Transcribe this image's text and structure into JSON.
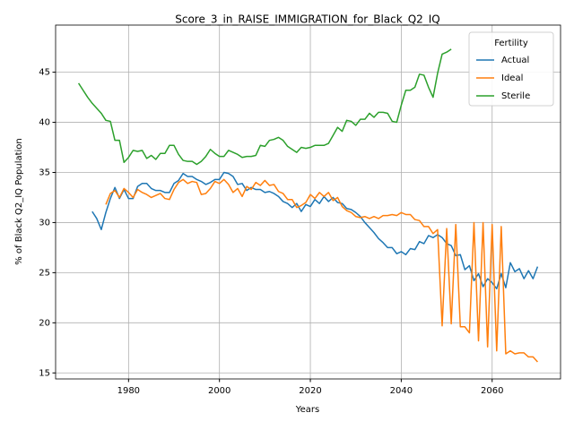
{
  "chart_data": {
    "type": "line",
    "title": "Score_3_in_RAISE_IMMIGRATION_for_Black_Q2_IQ",
    "xlabel": "Years",
    "ylabel": "% of Black Q2_IQ Population",
    "legend_title": "Fertility",
    "legend": "upper right",
    "grid": true,
    "xlim": [
      1963.95,
      2075.05
    ],
    "ylim": [
      14.4,
      49.7
    ],
    "xticks": [
      1980,
      2000,
      2020,
      2040,
      2060
    ],
    "yticks": [
      15,
      20,
      25,
      30,
      35,
      40,
      45
    ],
    "x": [
      1969,
      1970,
      1971,
      1972,
      1973,
      1974,
      1975,
      1976,
      1977,
      1978,
      1979,
      1980,
      1981,
      1982,
      1983,
      1984,
      1985,
      1986,
      1987,
      1988,
      1989,
      1990,
      1991,
      1992,
      1993,
      1994,
      1995,
      1996,
      1997,
      1998,
      1999,
      2000,
      2001,
      2002,
      2003,
      2004,
      2005,
      2006,
      2007,
      2008,
      2009,
      2010,
      2011,
      2012,
      2013,
      2014,
      2015,
      2016,
      2017,
      2018,
      2019,
      2020,
      2021,
      2022,
      2023,
      2024,
      2025,
      2026,
      2027,
      2028,
      2029,
      2030,
      2031,
      2032,
      2033,
      2034,
      2035,
      2036,
      2037,
      2038,
      2039,
      2040,
      2041,
      2042,
      2043,
      2044,
      2045,
      2046,
      2047,
      2048,
      2049,
      2050,
      2051,
      2052,
      2053,
      2054,
      2055,
      2056,
      2057,
      2058,
      2059,
      2060,
      2061,
      2062,
      2063,
      2064,
      2065,
      2066,
      2067,
      2068,
      2069,
      2070
    ],
    "series": [
      {
        "name": "Actual",
        "color": "#1f77b4",
        "values": [
          null,
          null,
          null,
          31.1,
          30.4,
          29.3,
          31.0,
          32.4,
          33.5,
          32.4,
          33.3,
          32.4,
          32.4,
          33.6,
          33.9,
          33.9,
          33.4,
          33.2,
          33.2,
          33.0,
          33.0,
          33.9,
          34.2,
          34.9,
          34.6,
          34.6,
          34.3,
          34.1,
          33.8,
          34.0,
          34.3,
          34.3,
          35.0,
          34.9,
          34.6,
          33.8,
          33.9,
          33.2,
          33.5,
          33.3,
          33.3,
          33.0,
          33.1,
          32.9,
          32.6,
          32.1,
          31.9,
          31.5,
          31.9,
          31.1,
          31.8,
          31.6,
          32.3,
          31.9,
          32.6,
          32.1,
          32.5,
          32.0,
          31.9,
          31.4,
          31.3,
          31.0,
          30.6,
          30.0,
          29.5,
          29.0,
          28.4,
          28.0,
          27.5,
          27.5,
          26.9,
          27.1,
          26.8,
          27.4,
          27.3,
          28.1,
          27.9,
          28.7,
          28.5,
          28.8,
          28.5,
          27.9,
          27.7,
          26.7,
          26.8,
          25.3,
          25.7,
          24.2,
          24.9,
          23.6,
          24.4,
          24.0,
          23.4,
          24.9,
          23.5,
          26.0,
          25.1,
          25.4,
          24.4,
          25.2,
          24.4,
          25.6
        ]
      },
      {
        "name": "Ideal",
        "color": "#ff7f0e",
        "values": [
          null,
          null,
          null,
          null,
          null,
          null,
          31.8,
          32.9,
          33.2,
          32.5,
          33.4,
          33.0,
          32.5,
          33.3,
          33.0,
          32.8,
          32.5,
          32.7,
          32.9,
          32.4,
          32.3,
          33.3,
          34.0,
          34.3,
          33.9,
          34.1,
          34.0,
          32.8,
          32.9,
          33.4,
          34.1,
          33.9,
          34.3,
          33.8,
          33.0,
          33.4,
          32.6,
          33.6,
          33.3,
          34.0,
          33.7,
          34.2,
          33.7,
          33.8,
          33.1,
          32.9,
          32.3,
          32.3,
          31.5,
          31.7,
          32.0,
          32.8,
          32.4,
          33.0,
          32.6,
          33.0,
          32.2,
          32.5,
          31.6,
          31.2,
          31.0,
          30.6,
          30.5,
          30.6,
          30.4,
          30.6,
          30.4,
          30.7,
          30.7,
          30.8,
          30.7,
          31.0,
          30.8,
          30.8,
          30.3,
          30.2,
          29.6,
          29.6,
          28.9,
          29.3,
          19.7,
          29.4,
          19.9,
          29.8,
          19.6,
          19.6,
          19.0,
          30.0,
          18.2,
          30.0,
          17.6,
          29.8,
          17.2,
          29.6,
          16.9,
          17.2,
          16.9,
          17.0,
          17.0,
          16.6,
          16.6,
          16.1
        ]
      },
      {
        "name": "Sterile",
        "color": "#2ca02c",
        "values": [
          43.9,
          43.2,
          42.5,
          41.9,
          41.4,
          40.9,
          40.2,
          40.1,
          38.2,
          38.2,
          36.0,
          36.5,
          37.2,
          37.1,
          37.2,
          36.4,
          36.7,
          36.3,
          36.9,
          36.9,
          37.7,
          37.7,
          36.8,
          36.2,
          36.1,
          36.1,
          35.8,
          36.1,
          36.6,
          37.3,
          36.9,
          36.6,
          36.6,
          37.2,
          37.0,
          36.8,
          36.5,
          36.6,
          36.6,
          36.7,
          37.7,
          37.6,
          38.2,
          38.3,
          38.5,
          38.2,
          37.6,
          37.3,
          37.0,
          37.5,
          37.4,
          37.5,
          37.7,
          37.7,
          37.7,
          37.9,
          38.7,
          39.5,
          39.1,
          40.2,
          40.1,
          39.7,
          40.3,
          40.3,
          40.9,
          40.5,
          41.0,
          41.0,
          40.9,
          40.1,
          40.0,
          41.7,
          43.2,
          43.2,
          43.5,
          44.8,
          44.7,
          43.5,
          42.5,
          44.9,
          46.8,
          47.0,
          47.3,
          null,
          null,
          null,
          null,
          null,
          null,
          null,
          null,
          null,
          null,
          null,
          null,
          null,
          null,
          null,
          null,
          null,
          null,
          null
        ]
      }
    ]
  }
}
